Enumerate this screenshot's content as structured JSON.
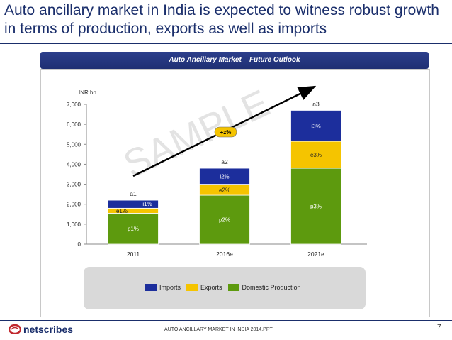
{
  "slide": {
    "title": "Auto ancillary market in India is expected to witness robust growth in terms of production, exports as well as imports",
    "banner": "Auto Ancillary Market – Future Outlook",
    "footer": "AUTO ANCILLARY MARKET IN INDIA 2014.PPT",
    "page_number": "7",
    "brand": "netscribes",
    "watermark": "SAMPLE",
    "growth_badge": "+z%"
  },
  "colors": {
    "imports": "#1c2e9c",
    "exports": "#f5c400",
    "domestic": "#5d9a0e",
    "navy": "#1a2e6b"
  },
  "chart_data": {
    "type": "bar",
    "stacked": true,
    "title": "",
    "ylabel": "INR bn",
    "xlabel": "",
    "ylim": [
      0,
      7000
    ],
    "yticks": [
      "0",
      "1,000",
      "2,000",
      "3,000",
      "4,000",
      "5,000",
      "6,000",
      "7,000"
    ],
    "categories": [
      "2011",
      "2016e",
      "2021e"
    ],
    "series": [
      {
        "name": "Domestic Production",
        "values": [
          1550,
          2450,
          3800
        ],
        "labels": [
          "p1%",
          "p2%",
          "p3%"
        ]
      },
      {
        "name": "Exports",
        "values": [
          250,
          550,
          1350
        ],
        "labels": [
          "e1%",
          "e2%",
          "e3%"
        ]
      },
      {
        "name": "Imports",
        "values": [
          400,
          800,
          1550
        ],
        "labels": [
          "i1%",
          "i2%",
          "i3%"
        ]
      }
    ],
    "totals": [
      "a1",
      "a2",
      "a3"
    ],
    "legend": [
      "Imports",
      "Exports",
      "Domestic Production"
    ],
    "grid": false
  }
}
